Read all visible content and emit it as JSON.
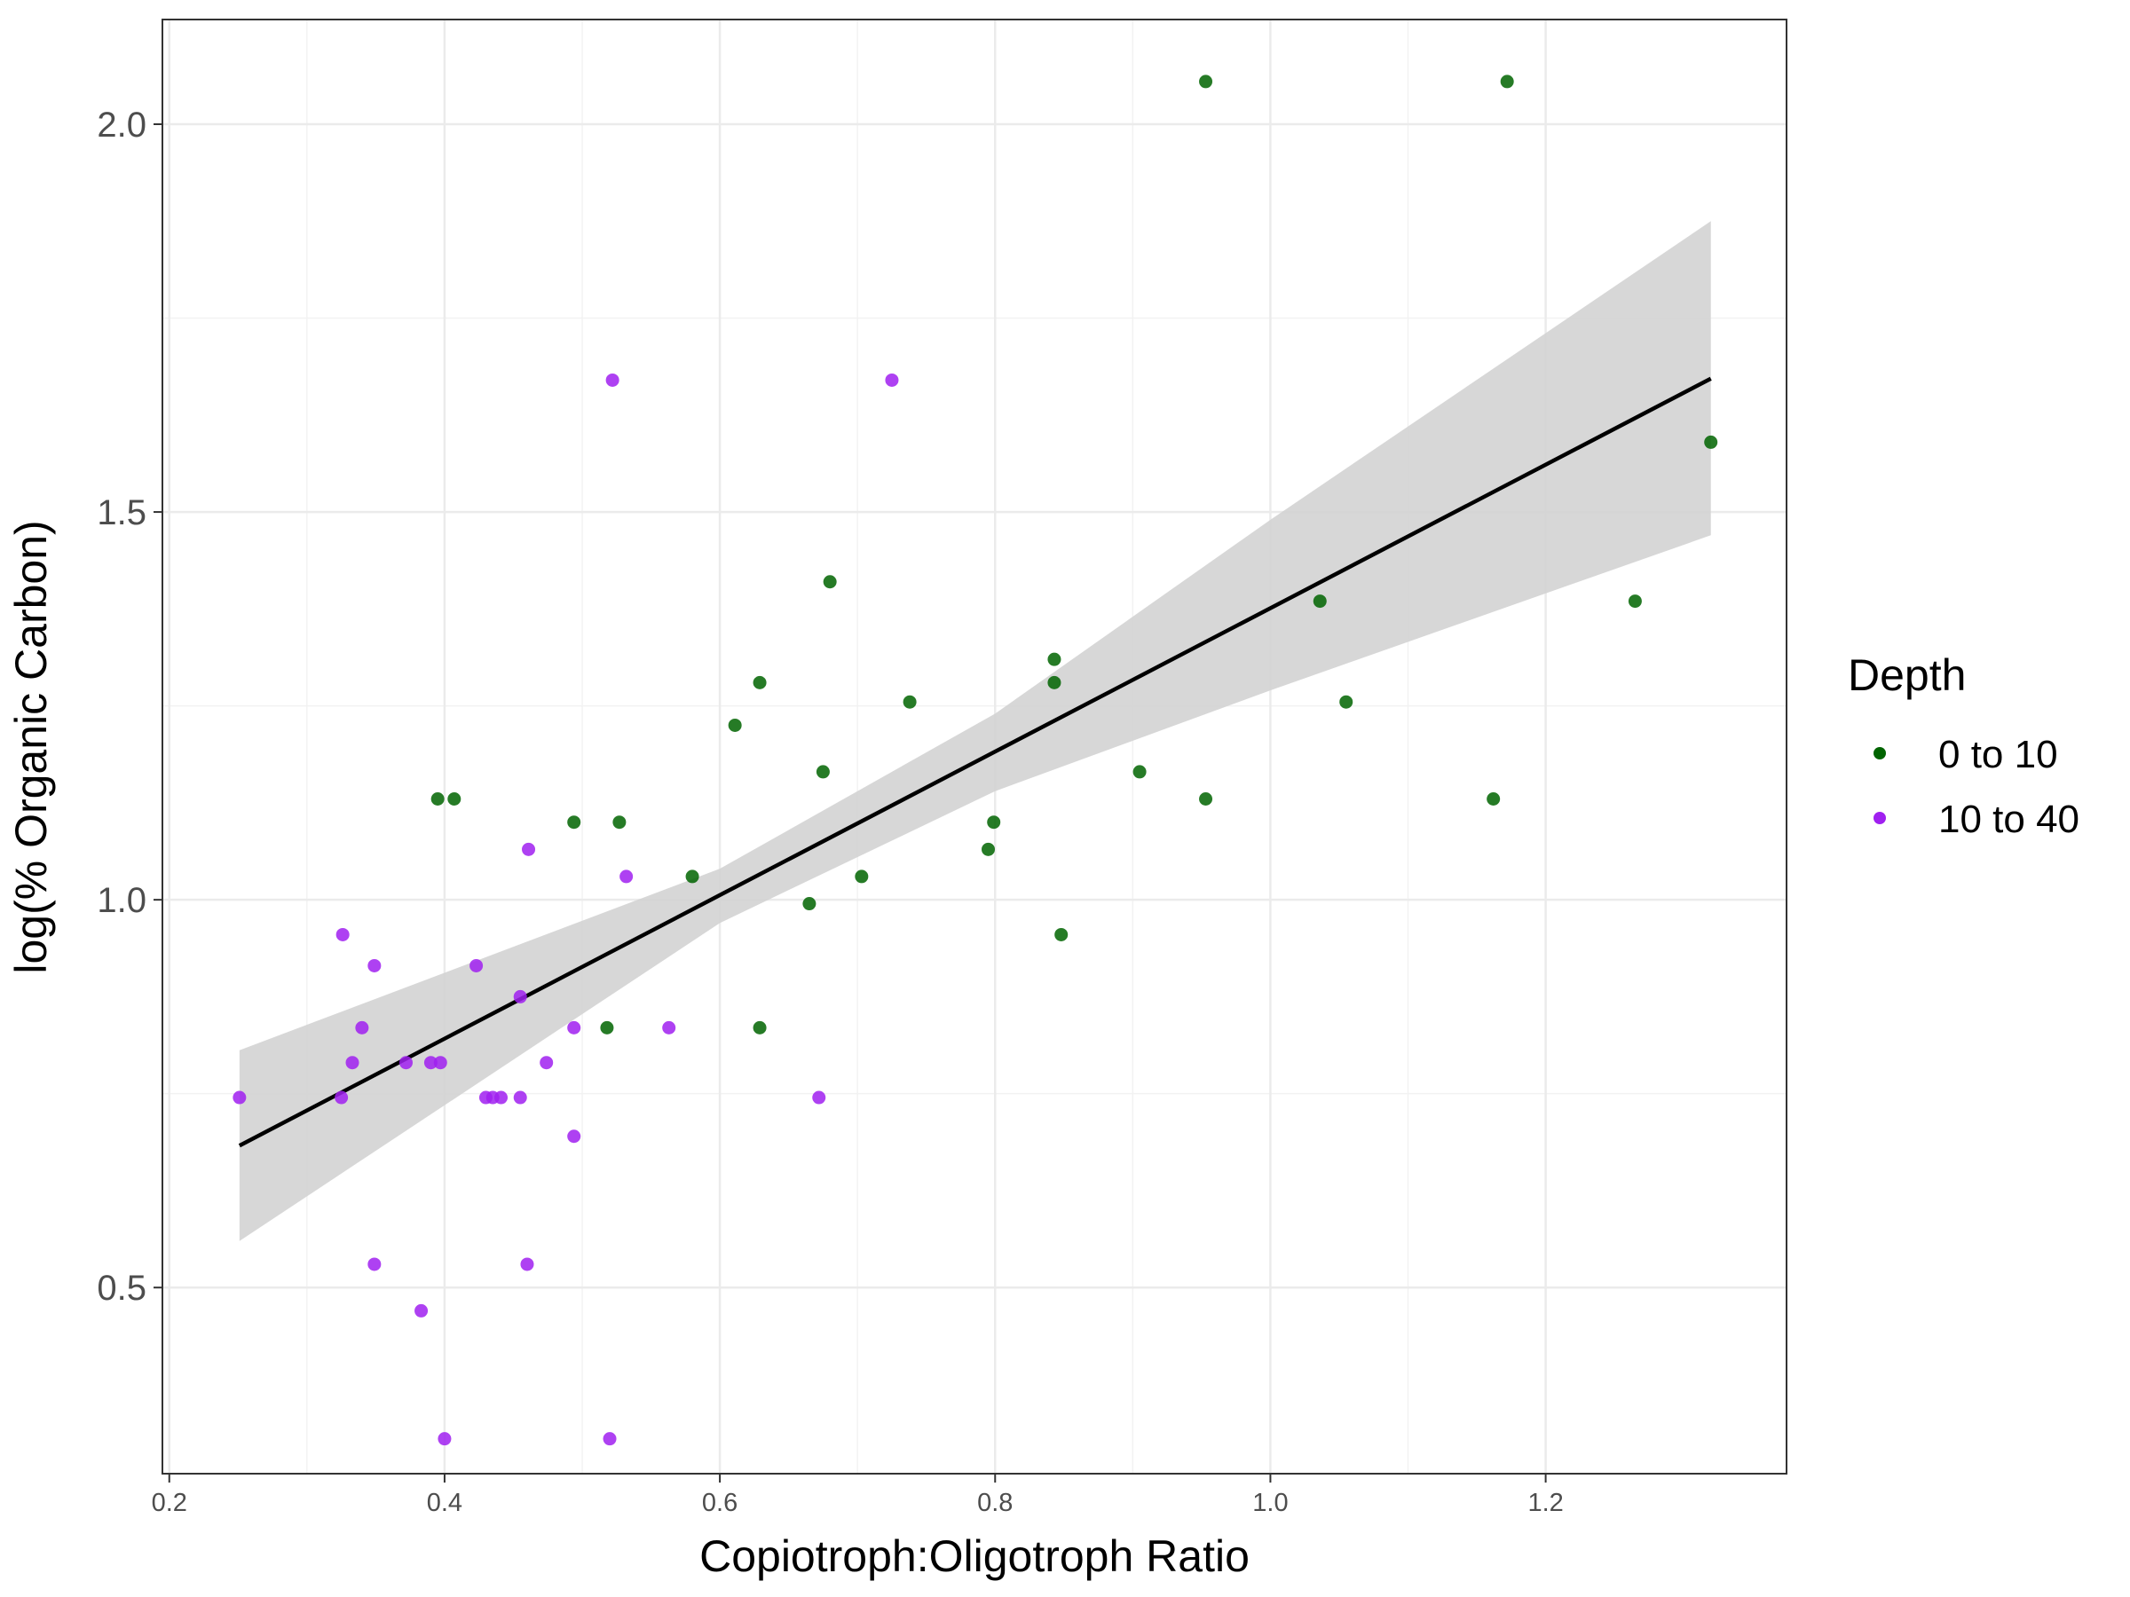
{
  "chart_data": {
    "type": "scatter",
    "title": "",
    "xlabel": "Copiotroph:Oligotroph Ratio",
    "ylabel": "log(% Organic Carbon)",
    "xlim": [
      0.195,
      1.375
    ],
    "ylim": [
      0.26,
      2.135
    ],
    "x_ticks": [
      0.2,
      0.4,
      0.6,
      0.8,
      1.0,
      1.2
    ],
    "x_tick_labels": [
      "0.2",
      "0.4",
      "0.6",
      "0.8",
      "1.0",
      "1.2"
    ],
    "y_ticks": [
      0.5,
      1.0,
      1.5,
      2.0
    ],
    "y_tick_labels": [
      "0.5",
      "1.0",
      "1.5",
      "2.0"
    ],
    "grid": true,
    "legend": {
      "title": "Depth",
      "position": "right",
      "entries": [
        {
          "label": "0 to 10",
          "color": "#006400"
        },
        {
          "label": "10 to 40",
          "color": "#A020F0"
        }
      ]
    },
    "series": [
      {
        "name": "0 to 10",
        "color": "#006400",
        "points": [
          [
            0.953,
            2.055
          ],
          [
            1.172,
            2.055
          ],
          [
            1.32,
            1.59
          ],
          [
            1.265,
            1.385
          ],
          [
            1.036,
            1.385
          ],
          [
            1.055,
            1.255
          ],
          [
            0.843,
            1.31
          ],
          [
            0.843,
            1.28
          ],
          [
            0.68,
            1.41
          ],
          [
            0.629,
            1.28
          ],
          [
            0.611,
            1.225
          ],
          [
            0.738,
            1.255
          ],
          [
            0.675,
            1.165
          ],
          [
            0.905,
            1.165
          ],
          [
            0.953,
            1.13
          ],
          [
            1.162,
            1.13
          ],
          [
            0.395,
            1.13
          ],
          [
            0.407,
            1.13
          ],
          [
            0.494,
            1.1
          ],
          [
            0.527,
            1.1
          ],
          [
            0.799,
            1.1
          ],
          [
            0.795,
            1.065
          ],
          [
            0.58,
            1.03
          ],
          [
            0.703,
            1.03
          ],
          [
            0.665,
            0.995
          ],
          [
            0.848,
            0.955
          ],
          [
            0.518,
            0.835
          ],
          [
            0.629,
            0.835
          ]
        ]
      },
      {
        "name": "10 to 40",
        "color": "#A020F0",
        "points": [
          [
            0.522,
            1.67
          ],
          [
            0.725,
            1.67
          ],
          [
            0.461,
            1.065
          ],
          [
            0.532,
            1.03
          ],
          [
            0.326,
            0.955
          ],
          [
            0.349,
            0.915
          ],
          [
            0.423,
            0.915
          ],
          [
            0.455,
            0.875
          ],
          [
            0.34,
            0.835
          ],
          [
            0.494,
            0.835
          ],
          [
            0.563,
            0.835
          ],
          [
            0.333,
            0.79
          ],
          [
            0.372,
            0.79
          ],
          [
            0.39,
            0.79
          ],
          [
            0.397,
            0.79
          ],
          [
            0.474,
            0.79
          ],
          [
            0.251,
            0.745
          ],
          [
            0.325,
            0.745
          ],
          [
            0.43,
            0.745
          ],
          [
            0.435,
            0.745
          ],
          [
            0.441,
            0.745
          ],
          [
            0.455,
            0.745
          ],
          [
            0.672,
            0.745
          ],
          [
            0.494,
            0.695
          ],
          [
            0.349,
            0.53
          ],
          [
            0.46,
            0.53
          ],
          [
            0.383,
            0.47
          ],
          [
            0.4,
            0.305
          ],
          [
            0.52,
            0.305
          ]
        ]
      }
    ],
    "fit": {
      "type": "linear",
      "color": "#000000",
      "band_color": "#d3d3d3",
      "x": [
        0.251,
        0.6,
        0.8,
        1.0,
        1.32
      ],
      "y": [
        0.683,
        1.006,
        1.191,
        1.376,
        1.672
      ],
      "ci_low": [
        0.56,
        0.97,
        1.14,
        1.27,
        1.47
      ],
      "ci_high": [
        0.806,
        1.04,
        1.24,
        1.49,
        1.875
      ]
    }
  }
}
